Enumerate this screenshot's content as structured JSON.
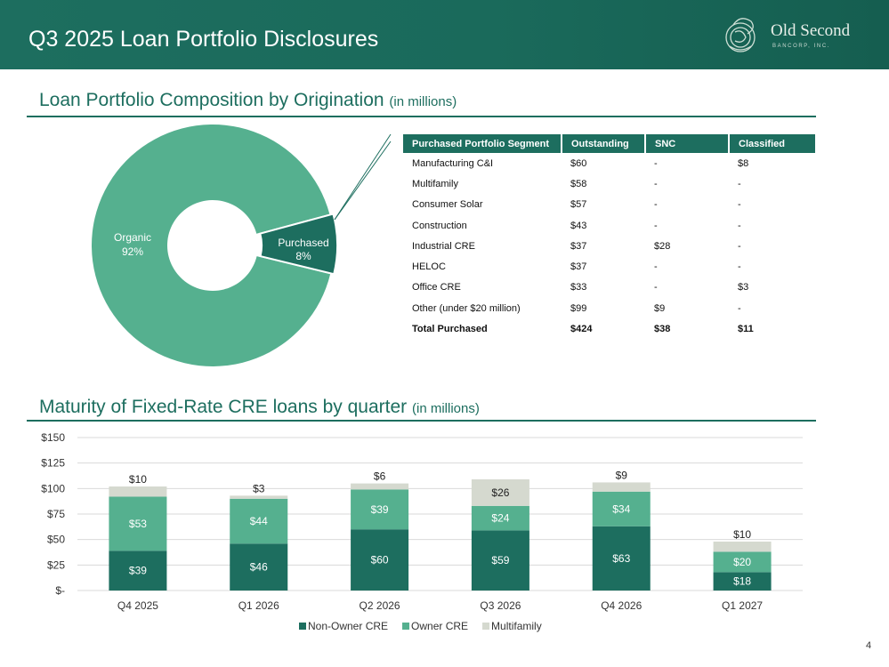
{
  "header": {
    "title": "Q3 2025 Loan Portfolio Disclosures"
  },
  "logo": {
    "name": "Old Second",
    "sub": "BANCORP, INC."
  },
  "colors": {
    "dark": "#1d6e5f",
    "mid": "#55b08f",
    "light": "#d5d9cf"
  },
  "section1": {
    "title": "Loan Portfolio Composition by Origination",
    "unit": "(in millions)"
  },
  "section2": {
    "title": "Maturity of Fixed-Rate CRE loans by quarter",
    "unit": "(in millions)"
  },
  "donut": {
    "organic": {
      "label": "Organic",
      "pct": "92%",
      "value": 92
    },
    "purchased": {
      "label": "Purchased",
      "pct": "8%",
      "value": 8
    }
  },
  "table": {
    "headers": [
      "Purchased Portfolio Segment",
      "Outstanding",
      "SNC",
      "Classified"
    ],
    "rows": [
      [
        "Manufacturing C&I",
        "$60",
        "-",
        "$8"
      ],
      [
        "Multifamily",
        "$58",
        "-",
        "-"
      ],
      [
        "Consumer Solar",
        "$57",
        "-",
        "-"
      ],
      [
        "Construction",
        "$43",
        "-",
        "-"
      ],
      [
        "Industrial CRE",
        "$37",
        "$28",
        "-"
      ],
      [
        "HELOC",
        "$37",
        "-",
        "-"
      ],
      [
        "Office CRE",
        "$33",
        "-",
        "$3"
      ],
      [
        "Other (under $20 million)",
        "$99",
        "$9",
        "-"
      ]
    ],
    "total": [
      "Total Purchased",
      "$424",
      "$38",
      "$11"
    ]
  },
  "chart_data": {
    "type": "bar",
    "stacked": true,
    "categories": [
      "Q4 2025",
      "Q1 2026",
      "Q2 2026",
      "Q3 2026",
      "Q4 2026",
      "Q1 2027"
    ],
    "series": [
      {
        "name": "Non-Owner CRE",
        "values": [
          39,
          46,
          60,
          59,
          63,
          18
        ],
        "labels": [
          "$39",
          "$46",
          "$60",
          "$59",
          "$63",
          "$18"
        ],
        "color": "#1d6e5f"
      },
      {
        "name": "Owner CRE",
        "values": [
          53,
          44,
          39,
          24,
          34,
          20
        ],
        "labels": [
          "$53",
          "$44",
          "$39",
          "$24",
          "$34",
          "$20"
        ],
        "color": "#55b08f"
      },
      {
        "name": "Multifamily",
        "values": [
          10,
          3,
          6,
          26,
          9,
          10
        ],
        "labels": [
          "$10",
          "$3",
          "$6",
          "$26",
          "$9",
          "$10"
        ],
        "color": "#d5d9cf"
      }
    ],
    "yticks": [
      0,
      25,
      50,
      75,
      100,
      125,
      150
    ],
    "ytick_labels": [
      "$-",
      "$25",
      "$50",
      "$75",
      "$100",
      "$125",
      "$150"
    ],
    "ylim": [
      0,
      150
    ],
    "grid": true,
    "legend": "bottom"
  },
  "page_number": "4"
}
